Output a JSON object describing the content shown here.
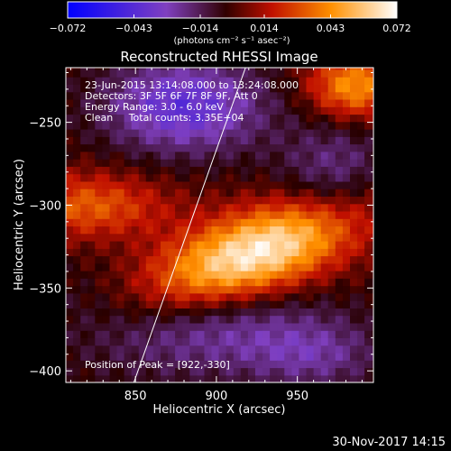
{
  "colorbar": {
    "ticks": [
      "-0.072",
      "-0.043",
      "-0.014",
      "0.014",
      "0.043",
      "0.072"
    ],
    "unit_label": "(photons cm⁻² s⁻¹ asec⁻²)",
    "range": [
      -0.072,
      0.072
    ]
  },
  "chart_data": {
    "type": "heatmap",
    "title": "Reconstructed RHESSI Image",
    "xlabel": "Heliocentric X (arcsec)",
    "ylabel": "Heliocentric Y (arcsec)",
    "xlim": [
      807,
      997
    ],
    "ylim": [
      -407,
      -217
    ],
    "x_ticks": [
      850,
      900,
      950
    ],
    "y_ticks": [
      -250,
      -300,
      -350,
      -400
    ],
    "x_tick_labels": [
      "850",
      "900",
      "950"
    ],
    "y_tick_labels": [
      "−250",
      "−300",
      "−350",
      "−400"
    ],
    "annotations": [
      "23-Jun-2015 13:14:08.000 to 13:24:08.000",
      "Detectors: 3F 5F 6F 7F 8F 9F, Att 0",
      "Energy Range: 3.0 - 6.0 keV",
      "Clean     Total counts: 3.35E+04"
    ],
    "peak_label": "Position of Peak = [922,-330]",
    "peak": [
      922,
      -330
    ],
    "limb_line": [
      [
        849,
        -407
      ],
      [
        918,
        -217
      ]
    ]
  },
  "footer": {
    "date": "30-Nov-2017 14:15"
  }
}
